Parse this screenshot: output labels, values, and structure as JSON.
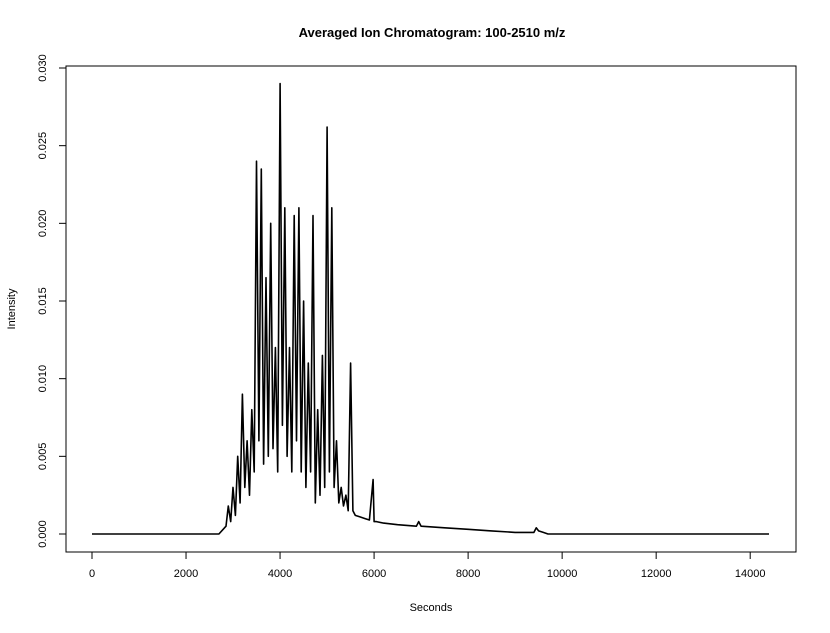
{
  "chart_data": {
    "type": "line",
    "title": "Averaged Ion Chromatogram: 100-2510 m/z",
    "xlabel": "Seconds",
    "ylabel": "Intensity",
    "xlim": [
      0,
      14400
    ],
    "ylim": [
      0,
      0.03
    ],
    "x_ticks": [
      0,
      2000,
      4000,
      6000,
      8000,
      10000,
      12000,
      14000
    ],
    "x_tick_labels": [
      "0",
      "2000",
      "4000",
      "6000",
      "8000",
      "10000",
      "12000",
      "14000"
    ],
    "y_ticks": [
      0.0,
      0.005,
      0.01,
      0.015,
      0.02,
      0.025,
      0.03
    ],
    "y_tick_labels": [
      "0.000",
      "0.005",
      "0.010",
      "0.015",
      "0.020",
      "0.025",
      "0.030"
    ],
    "grid": false,
    "line_color": "#000000",
    "series": [
      {
        "x": [
          0,
          1000,
          2000,
          2700,
          2850,
          2900,
          2950,
          3000,
          3050,
          3100,
          3150,
          3200,
          3250,
          3300,
          3350,
          3400,
          3450,
          3500,
          3550,
          3600,
          3650,
          3700,
          3750,
          3800,
          3850,
          3900,
          3950,
          4000,
          4050,
          4100,
          4150,
          4200,
          4250,
          4300,
          4350,
          4400,
          4450,
          4500,
          4550,
          4600,
          4650,
          4700,
          4750,
          4800,
          4850,
          4900,
          4950,
          5000,
          5050,
          5100,
          5150,
          5200,
          5250,
          5300,
          5350,
          5400,
          5450,
          5500,
          5550,
          5600,
          5700,
          5800,
          5900,
          5980,
          6000,
          6050,
          6200,
          6500,
          6900,
          6950,
          7000,
          7500,
          8000,
          8500,
          9000,
          9400,
          9450,
          9500,
          9600,
          9700,
          10000,
          12000,
          14400
        ],
        "y": [
          0.0,
          0.0,
          0.0,
          0.0,
          0.0005,
          0.0018,
          0.0008,
          0.003,
          0.0012,
          0.005,
          0.002,
          0.009,
          0.003,
          0.006,
          0.0025,
          0.008,
          0.004,
          0.024,
          0.006,
          0.0235,
          0.0045,
          0.0165,
          0.005,
          0.02,
          0.0055,
          0.012,
          0.004,
          0.029,
          0.007,
          0.021,
          0.005,
          0.012,
          0.004,
          0.0205,
          0.006,
          0.021,
          0.004,
          0.015,
          0.003,
          0.011,
          0.004,
          0.0205,
          0.002,
          0.008,
          0.0025,
          0.0115,
          0.003,
          0.0262,
          0.004,
          0.021,
          0.003,
          0.006,
          0.002,
          0.003,
          0.0018,
          0.0025,
          0.0015,
          0.011,
          0.0015,
          0.0012,
          0.0011,
          0.001,
          0.0009,
          0.0035,
          0.0008,
          0.0008,
          0.0007,
          0.0006,
          0.0005,
          0.0008,
          0.0005,
          0.0004,
          0.0003,
          0.0002,
          0.0001,
          0.0001,
          0.0004,
          0.0002,
          0.0001,
          0.0,
          0.0,
          0.0,
          0.0
        ]
      }
    ]
  }
}
